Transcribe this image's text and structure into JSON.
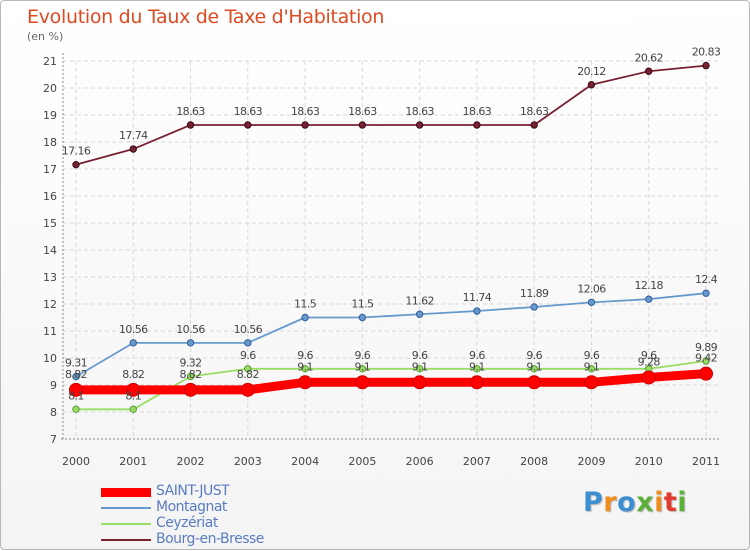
{
  "title": "Evolution du Taux de Taxe d'Habitation",
  "unit": "(en %)",
  "logo_text": "Proxiti",
  "chart_data": {
    "type": "line",
    "x": [
      "2000",
      "2001",
      "2002",
      "2003",
      "2004",
      "2005",
      "2006",
      "2007",
      "2008",
      "2009",
      "2010",
      "2011"
    ],
    "ylim": [
      7,
      21
    ],
    "yticks": [
      7,
      8,
      9,
      10,
      11,
      12,
      13,
      14,
      15,
      16,
      17,
      18,
      19,
      20,
      21
    ],
    "grid": true,
    "legend_position": "bottom-left",
    "series": [
      {
        "name": "SAINT-JUST",
        "color": "#ff0000",
        "values": [
          8.82,
          8.82,
          8.82,
          8.82,
          9.1,
          9.1,
          9.1,
          9.1,
          9.1,
          9.1,
          9.28,
          9.42
        ],
        "labels": [
          "8.82",
          "8.82",
          "8.82",
          "8.82",
          "9.1",
          "9.1",
          "9.1",
          "9.1",
          "9.1",
          "9.1",
          "9.28",
          "9.42"
        ]
      },
      {
        "name": "Montagnat",
        "color": "#6699cc",
        "values": [
          9.31,
          10.56,
          10.56,
          10.56,
          11.5,
          11.5,
          11.62,
          11.74,
          11.89,
          12.06,
          12.18,
          12.4
        ],
        "labels": [
          "9.31",
          "10.56",
          "10.56",
          "10.56",
          "11.5",
          "11.5",
          "11.62",
          "11.74",
          "11.89",
          "12.06",
          "12.18",
          "12.4"
        ]
      },
      {
        "name": "Ceyzériat",
        "color": "#99dd66",
        "values": [
          8.1,
          8.1,
          9.32,
          9.6,
          9.6,
          9.6,
          9.6,
          9.6,
          9.6,
          9.6,
          9.6,
          9.89
        ],
        "labels": [
          "8.1",
          "8.1",
          "9.32",
          "9.6",
          "9.6",
          "9.6",
          "9.6",
          "9.6",
          "9.6",
          "9.6",
          "9.6",
          "9.89"
        ]
      },
      {
        "name": "Bourg-en-Bresse",
        "color": "#772233",
        "values": [
          17.16,
          17.74,
          18.63,
          18.63,
          18.63,
          18.63,
          18.63,
          18.63,
          18.63,
          20.12,
          20.62,
          20.83
        ],
        "labels": [
          "17.16",
          "17.74",
          "18.63",
          "18.63",
          "18.63",
          "18.63",
          "18.63",
          "18.63",
          "18.63",
          "20.12",
          "20.62",
          "20.83"
        ]
      }
    ]
  }
}
